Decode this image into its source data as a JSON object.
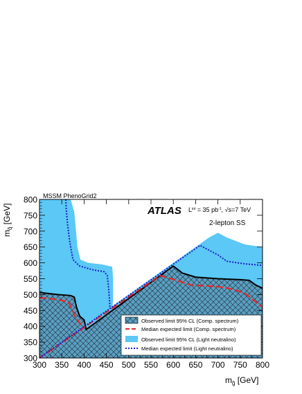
{
  "chart_data": {
    "type": "line",
    "top_label": "MSSM PhenoGrid2",
    "experiment": "ATLAS",
    "lumi_text": "L",
    "lumi_sup": "int",
    "lumi_value": " = 35 pb",
    "lumi_exp": "-1",
    "sqrt_symbol": "√",
    "energy_text": "s=7 TeV",
    "channel": "2-lepton SS",
    "xlabel": "m",
    "xlabel_sub": "g̃",
    "xlabel_unit": " [GeV]",
    "ylabel": "m",
    "ylabel_sub": "q̃",
    "ylabel_unit": " [GeV]",
    "xlim": [
      300,
      800
    ],
    "ylim": [
      300,
      800
    ],
    "x_ticks": [
      300,
      350,
      400,
      450,
      500,
      550,
      600,
      650,
      700,
      750,
      800
    ],
    "y_ticks": [
      300,
      350,
      400,
      450,
      500,
      550,
      600,
      650,
      700,
      750,
      800
    ],
    "colors": {
      "light_fill": "#5bc8f5",
      "hatch_fill": "#5b9fc0",
      "hatch_line": "#1a2a3a",
      "median_comp": "#e0282a",
      "median_light": "#1a1acc",
      "observed": "#000000"
    },
    "legend": {
      "placement": "bottom-right",
      "entries": [
        {
          "label": "Observed limit 95% CL (Comp. spectrum)",
          "style": "hatch"
        },
        {
          "label": "Median expected limit (Comp. spectrum)",
          "style": "red-dashed"
        },
        {
          "label": "Observed limit 95% CL (Light neutralino)",
          "style": "fill"
        },
        {
          "label": "Median expected limit (Light neutralino)",
          "style": "blue-dotted"
        }
      ]
    },
    "series": [
      {
        "name": "Observed limit 95% CL (Light neutralino)",
        "style": "fill",
        "points": [
          [
            300,
            800
          ],
          [
            370,
            800
          ],
          [
            378,
            760
          ],
          [
            382,
            700
          ],
          [
            385,
            650
          ],
          [
            392,
            610
          ],
          [
            410,
            600
          ],
          [
            440,
            595
          ],
          [
            463,
            588
          ],
          [
            465,
            550
          ],
          [
            465,
            480
          ],
          [
            462,
            450
          ],
          [
            440,
            437
          ],
          [
            420,
            420
          ],
          [
            300,
            300
          ],
          [
            300,
            800
          ]
        ],
        "region2": [
          [
            300,
            300
          ],
          [
            550,
            550
          ],
          [
            600,
            600
          ],
          [
            650,
            650
          ],
          [
            680,
            680
          ],
          [
            700,
            695
          ],
          [
            720,
            680
          ],
          [
            760,
            658
          ],
          [
            800,
            650
          ],
          [
            800,
            300
          ]
        ]
      },
      {
        "name": "Median expected limit (Light neutralino)",
        "style": "blue-dotted",
        "points": [
          [
            359,
            800
          ],
          [
            360,
            770
          ],
          [
            363,
            720
          ],
          [
            368,
            665
          ],
          [
            375,
            610
          ],
          [
            390,
            590
          ],
          [
            420,
            578
          ],
          [
            445,
            572
          ],
          [
            452,
            560
          ],
          [
            455,
            520
          ],
          [
            457,
            480
          ],
          [
            458,
            455
          ]
        ],
        "points2": [
          [
            300,
            300
          ],
          [
            660,
            655
          ],
          [
            680,
            640
          ],
          [
            700,
            625
          ],
          [
            720,
            605
          ],
          [
            760,
            597
          ],
          [
            800,
            592
          ]
        ]
      },
      {
        "name": "Observed limit 95% CL (Comp. spectrum)",
        "style": "hatch",
        "points": [
          [
            300,
            507
          ],
          [
            310,
            505
          ],
          [
            340,
            500
          ],
          [
            370,
            497
          ],
          [
            378,
            492
          ],
          [
            383,
            460
          ],
          [
            390,
            432
          ],
          [
            400,
            420
          ],
          [
            405,
            390
          ],
          [
            600,
            590
          ],
          [
            620,
            568
          ],
          [
            650,
            555
          ],
          [
            700,
            550
          ],
          [
            750,
            547
          ],
          [
            770,
            545
          ],
          [
            785,
            530
          ],
          [
            800,
            520
          ],
          [
            800,
            300
          ],
          [
            300,
            300
          ]
        ]
      },
      {
        "name": "Median expected limit (Comp. spectrum)",
        "style": "red-dashed",
        "points": [
          [
            300,
            490
          ],
          [
            340,
            485
          ],
          [
            365,
            476
          ],
          [
            374,
            450
          ],
          [
            380,
            430
          ],
          [
            390,
            410
          ],
          [
            395,
            400
          ]
        ],
        "points2": [
          [
            300,
            300
          ],
          [
            570,
            560
          ],
          [
            600,
            548
          ],
          [
            640,
            530
          ],
          [
            700,
            525
          ],
          [
            730,
            518
          ],
          [
            760,
            505
          ],
          [
            800,
            460
          ]
        ]
      }
    ]
  }
}
